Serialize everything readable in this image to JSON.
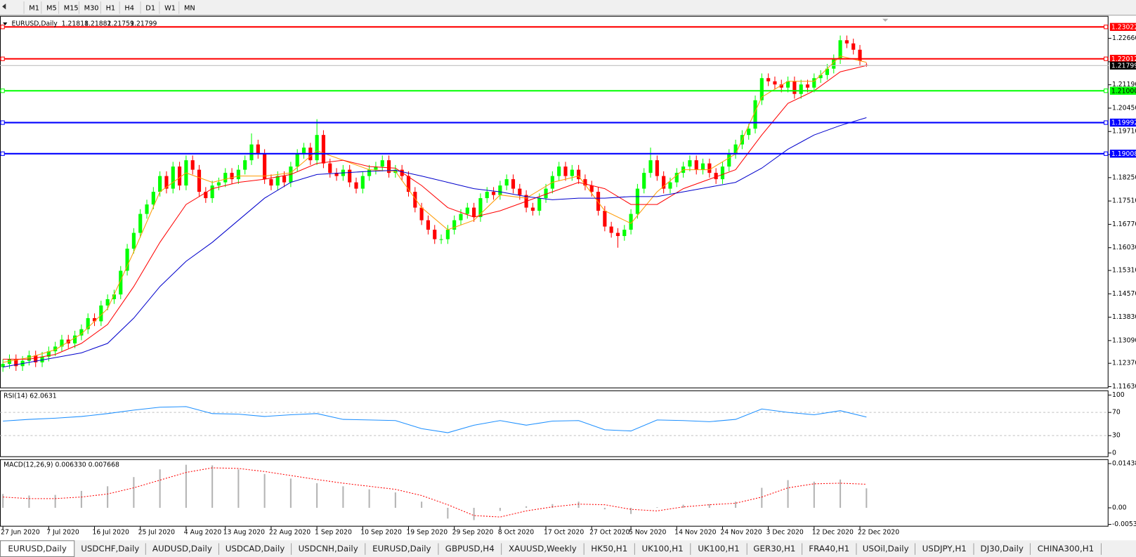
{
  "toolbar": [
    "M1",
    "M5",
    "M15",
    "M30",
    "H1",
    "H4",
    "D1",
    "W1",
    "MN"
  ],
  "tabs": [
    "EURUSD,Daily",
    "USDCHF,Daily",
    "AUDUSD,Daily",
    "USDCAD,Daily",
    "USDCNH,Daily",
    "EURUSD,Daily",
    "GBPUSD,H4",
    "XAUUSD,Weekly",
    "HK50,H1",
    "UK100,H1",
    "UK100,H1",
    "GER30,H1",
    "FRA40,H1",
    "USOil,Daily",
    "USDJPY,H1",
    "DJ30,Daily",
    "CHINA300,H1"
  ],
  "chart_data": [
    {
      "type": "candlestick",
      "title": "EURUSD,Daily",
      "up_color": "#00ff00",
      "down_color": "#ff0000",
      "open": [
        1.1225,
        1.1235,
        1.125,
        1.1228,
        1.1245,
        1.1262,
        1.124,
        1.1258,
        1.1275,
        1.129,
        1.1312,
        1.13,
        1.1325,
        1.1345,
        1.138,
        1.137,
        1.142,
        1.144,
        1.1455,
        1.153,
        1.16,
        1.165,
        1.171,
        1.174,
        1.178,
        1.183,
        1.179,
        1.186,
        1.18,
        1.188,
        1.185,
        1.178,
        1.176,
        1.18,
        1.181,
        1.184,
        1.182,
        1.185,
        1.188,
        1.193,
        1.19,
        1.182,
        1.18,
        1.183,
        1.181,
        1.186,
        1.19,
        1.192,
        1.188,
        1.196,
        1.187,
        1.184,
        1.183,
        1.185,
        1.181,
        1.179,
        1.183,
        1.185,
        1.186,
        1.188,
        1.184,
        1.185,
        1.183,
        1.178,
        1.173,
        1.169,
        1.166,
        1.163,
        1.163,
        1.166,
        1.169,
        1.171,
        1.173,
        1.17,
        1.176,
        1.178,
        1.177,
        1.18,
        1.182,
        1.179,
        1.177,
        1.173,
        1.172,
        1.176,
        1.179,
        1.183,
        1.186,
        1.183,
        1.185,
        1.182,
        1.18,
        1.178,
        1.172,
        1.167,
        1.165,
        1.164,
        1.166,
        1.171,
        1.179,
        1.184,
        1.188,
        1.183,
        1.179,
        1.181,
        1.184,
        1.186,
        1.188,
        1.185,
        1.187,
        1.184,
        1.182,
        1.186,
        1.19,
        1.193,
        1.196,
        1.198,
        1.207,
        1.214,
        1.213,
        1.212,
        1.211,
        1.213,
        1.209,
        1.212,
        1.211,
        1.214,
        1.215,
        1.217,
        1.22,
        1.226,
        1.225,
        1.223,
        1.21818
      ],
      "high": [
        1.125,
        1.1265,
        1.1265,
        1.126,
        1.1277,
        1.1277,
        1.1273,
        1.129,
        1.1305,
        1.1327,
        1.1327,
        1.134,
        1.136,
        1.1395,
        1.1395,
        1.1435,
        1.1455,
        1.147,
        1.1545,
        1.1615,
        1.1665,
        1.1725,
        1.1755,
        1.1795,
        1.1845,
        1.1845,
        1.1875,
        1.1875,
        1.1895,
        1.1895,
        1.1865,
        1.1795,
        1.1815,
        1.1825,
        1.1855,
        1.1855,
        1.1865,
        1.1895,
        1.1965,
        1.1945,
        1.1915,
        1.1835,
        1.1845,
        1.1845,
        1.1875,
        1.1915,
        1.1935,
        1.1935,
        1.201,
        1.1975,
        1.1885,
        1.1855,
        1.1865,
        1.1865,
        1.1825,
        1.1845,
        1.1865,
        1.1875,
        1.1895,
        1.1895,
        1.1865,
        1.1865,
        1.1845,
        1.1795,
        1.1745,
        1.1705,
        1.1675,
        1.1645,
        1.1675,
        1.1705,
        1.1725,
        1.1745,
        1.1745,
        1.1775,
        1.1795,
        1.1795,
        1.1815,
        1.1835,
        1.1835,
        1.1805,
        1.1785,
        1.1745,
        1.1775,
        1.1805,
        1.1845,
        1.1875,
        1.1875,
        1.1865,
        1.1865,
        1.1835,
        1.1815,
        1.1795,
        1.1735,
        1.1685,
        1.1665,
        1.1675,
        1.1725,
        1.1805,
        1.1855,
        1.192,
        1.1895,
        1.1845,
        1.1825,
        1.1855,
        1.1875,
        1.1895,
        1.1895,
        1.1885,
        1.1885,
        1.1855,
        1.1875,
        1.1915,
        1.1945,
        1.1975,
        1.1995,
        1.2085,
        1.2155,
        1.2155,
        1.2145,
        1.2135,
        1.2145,
        1.2145,
        1.2135,
        1.2135,
        1.2155,
        1.2165,
        1.2185,
        1.2215,
        1.2275,
        1.2275,
        1.2265,
        1.2245,
        1.21882
      ],
      "low": [
        1.121,
        1.122,
        1.1213,
        1.1213,
        1.123,
        1.1225,
        1.1225,
        1.1243,
        1.126,
        1.1275,
        1.1285,
        1.1285,
        1.131,
        1.133,
        1.1355,
        1.1355,
        1.1405,
        1.1425,
        1.144,
        1.1515,
        1.1585,
        1.1635,
        1.1695,
        1.1725,
        1.1765,
        1.1775,
        1.1775,
        1.1785,
        1.1785,
        1.1835,
        1.1765,
        1.1745,
        1.1745,
        1.1785,
        1.1795,
        1.1805,
        1.1805,
        1.1835,
        1.1865,
        1.1885,
        1.1805,
        1.1785,
        1.1785,
        1.1795,
        1.1795,
        1.1845,
        1.1885,
        1.1865,
        1.1865,
        1.1855,
        1.1825,
        1.1815,
        1.1815,
        1.1795,
        1.1775,
        1.1775,
        1.1815,
        1.1835,
        1.1845,
        1.1825,
        1.1825,
        1.1815,
        1.1765,
        1.1715,
        1.1675,
        1.1645,
        1.1615,
        1.1615,
        1.1615,
        1.1645,
        1.1675,
        1.1695,
        1.1685,
        1.1685,
        1.1745,
        1.1755,
        1.1755,
        1.1785,
        1.1775,
        1.1755,
        1.1715,
        1.1705,
        1.1705,
        1.1745,
        1.1775,
        1.1815,
        1.1815,
        1.1815,
        1.1805,
        1.1785,
        1.1765,
        1.1705,
        1.1655,
        1.1635,
        1.1603,
        1.1625,
        1.1645,
        1.1695,
        1.1775,
        1.1825,
        1.1815,
        1.1775,
        1.1775,
        1.1795,
        1.1825,
        1.1845,
        1.1835,
        1.1835,
        1.1825,
        1.1805,
        1.1805,
        1.1845,
        1.1885,
        1.1915,
        1.1945,
        1.1965,
        1.2055,
        1.2115,
        1.2105,
        1.2095,
        1.2095,
        1.2075,
        1.2075,
        1.2095,
        1.2095,
        1.2125,
        1.2135,
        1.2155,
        1.2185,
        1.2235,
        1.2215,
        1.218,
        1.21759
      ],
      "close": [
        1.1235,
        1.125,
        1.1228,
        1.1245,
        1.1262,
        1.124,
        1.1258,
        1.1275,
        1.129,
        1.1312,
        1.13,
        1.1325,
        1.1345,
        1.138,
        1.137,
        1.142,
        1.144,
        1.1455,
        1.153,
        1.16,
        1.165,
        1.171,
        1.174,
        1.178,
        1.183,
        1.179,
        1.186,
        1.18,
        1.188,
        1.185,
        1.178,
        1.176,
        1.18,
        1.181,
        1.184,
        1.182,
        1.185,
        1.188,
        1.193,
        1.19,
        1.182,
        1.18,
        1.183,
        1.181,
        1.186,
        1.19,
        1.192,
        1.188,
        1.196,
        1.187,
        1.184,
        1.183,
        1.185,
        1.181,
        1.179,
        1.183,
        1.185,
        1.186,
        1.188,
        1.184,
        1.185,
        1.183,
        1.178,
        1.173,
        1.169,
        1.166,
        1.163,
        1.163,
        1.166,
        1.169,
        1.171,
        1.173,
        1.17,
        1.176,
        1.178,
        1.177,
        1.18,
        1.182,
        1.179,
        1.177,
        1.173,
        1.172,
        1.176,
        1.179,
        1.183,
        1.186,
        1.183,
        1.185,
        1.182,
        1.18,
        1.178,
        1.172,
        1.167,
        1.165,
        1.164,
        1.166,
        1.171,
        1.179,
        1.184,
        1.188,
        1.183,
        1.179,
        1.181,
        1.184,
        1.186,
        1.188,
        1.185,
        1.187,
        1.184,
        1.182,
        1.186,
        1.19,
        1.193,
        1.196,
        1.198,
        1.207,
        1.214,
        1.213,
        1.212,
        1.211,
        1.213,
        1.209,
        1.212,
        1.211,
        1.214,
        1.215,
        1.217,
        1.22,
        1.226,
        1.225,
        1.223,
        1.2195,
        1.21799
      ],
      "series_x": [
        0,
        4,
        8,
        12,
        16,
        20,
        24,
        28,
        32,
        36,
        40,
        44,
        48,
        52,
        56,
        60,
        64,
        68,
        72,
        76,
        80,
        84,
        88,
        92,
        96,
        100,
        104,
        108,
        112,
        116,
        120,
        124,
        128,
        132
      ],
      "series": [
        {
          "color": "#ff9900",
          "values": [
            1.124,
            1.1255,
            1.128,
            1.133,
            1.141,
            1.159,
            1.178,
            1.184,
            1.181,
            1.183,
            1.183,
            1.184,
            1.191,
            1.188,
            1.185,
            1.1845,
            1.173,
            1.166,
            1.169,
            1.177,
            1.176,
            1.181,
            1.183,
            1.172,
            1.168,
            1.178,
            1.185,
            1.185,
            1.19,
            1.208,
            1.213,
            1.213,
            1.221,
            1.219
          ]
        },
        {
          "color": "#ff0000",
          "values": [
            1.125,
            1.125,
            1.1265,
            1.13,
            1.136,
            1.148,
            1.162,
            1.174,
            1.179,
            1.181,
            1.182,
            1.1835,
            1.187,
            1.188,
            1.186,
            1.1855,
            1.18,
            1.173,
            1.17,
            1.172,
            1.175,
            1.178,
            1.181,
            1.179,
            1.174,
            1.174,
            1.179,
            1.182,
            1.185,
            1.196,
            1.206,
            1.21,
            1.216,
            1.218
          ]
        },
        {
          "color": "#0000cc",
          "values": [
            1.1225,
            1.124,
            1.1255,
            1.127,
            1.13,
            1.138,
            1.148,
            1.156,
            1.162,
            1.169,
            1.176,
            1.181,
            1.1835,
            1.184,
            1.1845,
            1.1848,
            1.183,
            1.181,
            1.179,
            1.178,
            1.1765,
            1.1755,
            1.176,
            1.176,
            1.1765,
            1.1765,
            1.178,
            1.1795,
            1.181,
            1.1855,
            1.1915,
            1.196,
            1.199,
            1.2015
          ]
        }
      ],
      "levels": [
        {
          "value": 1.23022,
          "color": "#ff0000"
        },
        {
          "value": 1.22012,
          "color": "#ff0000"
        },
        {
          "value": 1.21,
          "label": "1.21000",
          "color": "#00ff00"
        },
        {
          "value": 1.19992,
          "color": "#0000ff"
        },
        {
          "value": 1.19008,
          "color": "#0000ff"
        }
      ],
      "ylim": [
        1.1158,
        1.2337
      ],
      "yticks": [
        {
          "value": 1.2266,
          "label": "1.22660"
        },
        {
          "value": 1.2192,
          "label": "1.21920"
        },
        {
          "value": 1.2119,
          "label": "1.21190"
        },
        {
          "value": 1.2045,
          "label": "1.20450"
        },
        {
          "value": 1.1971,
          "label": "1.19710"
        },
        {
          "value": 1.1898,
          "label": "1.18980"
        },
        {
          "value": 1.1825,
          "label": "1.18250"
        },
        {
          "value": 1.1751,
          "label": "1.17510"
        },
        {
          "value": 1.1677,
          "label": "1.16770"
        },
        {
          "value": 1.1603,
          "label": "1.16030"
        },
        {
          "value": 1.1531,
          "label": "1.15310"
        },
        {
          "value": 1.1457,
          "label": "1.14570"
        },
        {
          "value": 1.1383,
          "label": "1.13830"
        },
        {
          "value": 1.1309,
          "label": "1.13090"
        },
        {
          "value": 1.1237,
          "label": "1.12370"
        },
        {
          "value": 1.1163,
          "label": "1.11630"
        }
      ],
      "xticks": [
        {
          "value": 0,
          "label": "27 Jun 2020"
        },
        {
          "value": 7,
          "label": "7 Jul 2020"
        },
        {
          "value": 14,
          "label": "16 Jul 2020"
        },
        {
          "value": 21,
          "label": "25 Jul 2020"
        },
        {
          "value": 28,
          "label": "4 Aug 2020"
        },
        {
          "value": 34,
          "label": "13 Aug 2020"
        },
        {
          "value": 41,
          "label": "22 Aug 2020"
        },
        {
          "value": 48,
          "label": "1 Sep 2020"
        },
        {
          "value": 55,
          "label": "10 Sep 2020"
        },
        {
          "value": 62,
          "label": "19 Sep 2020"
        },
        {
          "value": 69,
          "label": "29 Sep 2020"
        },
        {
          "value": 76,
          "label": "8 Oct 2020"
        },
        {
          "value": 83,
          "label": "17 Oct 2020"
        },
        {
          "value": 90,
          "label": "27 Oct 2020"
        },
        {
          "value": 96,
          "label": "5 Nov 2020"
        },
        {
          "value": 103,
          "label": "14 Nov 2020"
        },
        {
          "value": 110,
          "label": "24 Nov 2020"
        },
        {
          "value": 117,
          "label": "3 Dec 2020"
        },
        {
          "value": 124,
          "label": "12 Dec 2020"
        },
        {
          "value": 131,
          "label": "22 Dec 2020"
        }
      ]
    },
    {
      "type": "line",
      "title": "RSI(14)",
      "color": "#1e90ff",
      "x": [
        0,
        4,
        8,
        12,
        16,
        20,
        24,
        28,
        32,
        36,
        40,
        44,
        48,
        52,
        56,
        60,
        64,
        68,
        72,
        76,
        80,
        84,
        88,
        92,
        96,
        100,
        104,
        108,
        112,
        116,
        120,
        124,
        128,
        132
      ],
      "values": [
        55,
        58,
        60,
        63,
        68,
        74,
        79,
        80,
        68,
        67,
        63,
        66,
        68,
        58,
        57,
        56,
        42,
        35,
        48,
        56,
        48,
        55,
        56,
        40,
        38,
        57,
        56,
        54,
        58,
        76,
        70,
        66,
        73,
        62.0631
      ],
      "levels": [
        30,
        70
      ],
      "ylim": [
        -7,
        108
      ],
      "yticks": [
        100,
        70,
        30,
        0
      ]
    },
    {
      "type": "macd",
      "title": "MACD(12,26,9) 0.006330 0.007668",
      "hist_color": "#b4b4b4",
      "x": [
        0,
        4,
        8,
        12,
        16,
        20,
        24,
        28,
        32,
        36,
        40,
        44,
        48,
        52,
        56,
        60,
        64,
        68,
        72,
        76,
        80,
        84,
        88,
        92,
        96,
        100,
        104,
        108,
        112,
        116,
        120,
        124,
        128,
        132
      ],
      "values": [
        0.0045,
        0.004,
        0.0042,
        0.0055,
        0.007,
        0.01,
        0.0125,
        0.014,
        0.0138,
        0.0125,
        0.011,
        0.0095,
        0.008,
        0.007,
        0.006,
        0.005,
        0.002,
        -0.0035,
        -0.004,
        -0.001,
        0.0005,
        0.0012,
        0.002,
        -0.0005,
        -0.002,
        0.0002,
        0.001,
        0.0012,
        0.002,
        0.0065,
        0.009,
        0.0085,
        0.0092,
        0.00633
      ],
      "series": [
        {
          "color": "#ff0000",
          "values": [
            0.0035,
            0.003,
            0.003,
            0.0035,
            0.0045,
            0.0065,
            0.009,
            0.0115,
            0.013,
            0.0128,
            0.0118,
            0.0105,
            0.0092,
            0.008,
            0.007,
            0.006,
            0.004,
            0.001,
            -0.0025,
            -0.003,
            -0.001,
            0.0003,
            0.0012,
            0.001,
            -0.0005,
            -0.001,
            0.0003,
            0.001,
            0.0015,
            0.0035,
            0.0065,
            0.0078,
            0.008,
            0.007668
          ]
        }
      ],
      "ylim": [
        -0.0061,
        0.0158
      ],
      "yticks": [
        0.01438,
        {
          "value": 0,
          "label": "0.00"
        },
        -0.00539
      ]
    }
  ]
}
